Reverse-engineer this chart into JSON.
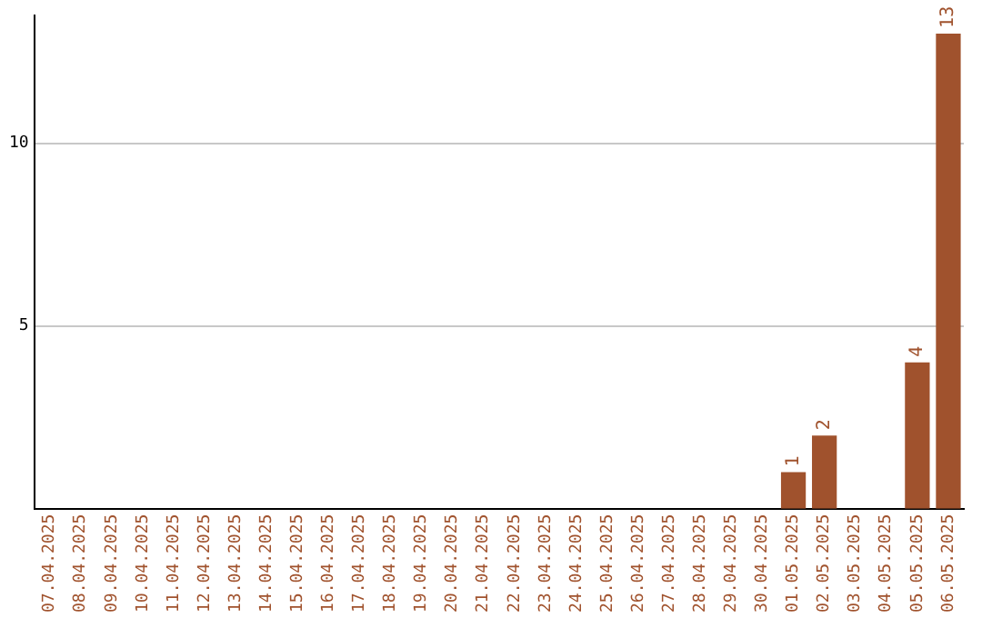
{
  "chart_data": {
    "type": "bar",
    "categories": [
      "07.04.2025",
      "08.04.2025",
      "09.04.2025",
      "10.04.2025",
      "11.04.2025",
      "12.04.2025",
      "13.04.2025",
      "14.04.2025",
      "15.04.2025",
      "16.04.2025",
      "17.04.2025",
      "18.04.2025",
      "19.04.2025",
      "20.04.2025",
      "21.04.2025",
      "22.04.2025",
      "23.04.2025",
      "24.04.2025",
      "25.04.2025",
      "26.04.2025",
      "27.04.2025",
      "28.04.2025",
      "29.04.2025",
      "30.04.2025",
      "01.05.2025",
      "02.05.2025",
      "03.05.2025",
      "04.05.2025",
      "05.05.2025",
      "06.05.2025"
    ],
    "values": [
      0,
      0,
      0,
      0,
      0,
      0,
      0,
      0,
      0,
      0,
      0,
      0,
      0,
      0,
      0,
      0,
      0,
      0,
      0,
      0,
      0,
      0,
      0,
      0,
      1,
      2,
      0,
      0,
      4,
      13
    ],
    "value_labels": [
      null,
      null,
      null,
      null,
      null,
      null,
      null,
      null,
      null,
      null,
      null,
      null,
      null,
      null,
      null,
      null,
      null,
      null,
      null,
      null,
      null,
      null,
      null,
      null,
      "1",
      "2",
      null,
      null,
      "4",
      "13"
    ],
    "color": "#a0522d",
    "ylim": [
      0,
      13.5
    ],
    "yticks": [
      5,
      10
    ],
    "grid": "y",
    "legend": false
  }
}
